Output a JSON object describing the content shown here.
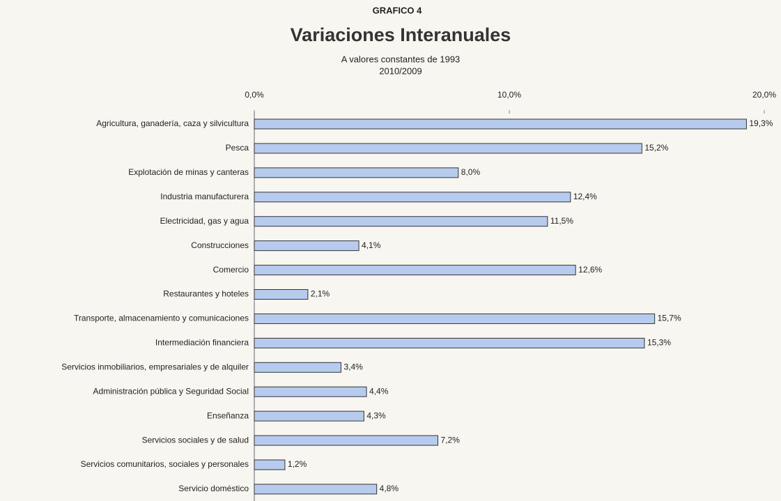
{
  "chart_data": {
    "type": "hbar",
    "heading": "GRAFICO 4",
    "title": "Variaciones Interanuales",
    "subtitle": [
      "A valores constantes de 1993",
      "2010/2009"
    ],
    "categories": [
      "Agricultura, ganadería, caza y silvicultura",
      "Pesca",
      "Explotación de minas y canteras",
      "Industria manufacturera",
      "Electricidad, gas y agua",
      "Construcciones",
      "Comercio",
      "Restaurantes y hoteles",
      "Transporte, almacenamiento y comunicaciones",
      "Intermediación financiera",
      "Servicios inmobiliarios, empresariales y de alquiler",
      "Administración pública y Seguridad Social",
      "Enseñanza",
      "Servicios sociales y de salud",
      "Servicios comunitarios, sociales y personales",
      "Servicio doméstico"
    ],
    "values": [
      19.3,
      15.2,
      8.0,
      12.4,
      11.5,
      4.1,
      12.6,
      2.1,
      15.7,
      15.3,
      3.4,
      4.4,
      4.3,
      7.2,
      1.2,
      4.8
    ],
    "value_labels": [
      "19,3%",
      "15,2%",
      "8,0%",
      "12,4%",
      "11,5%",
      "4,1%",
      "12,6%",
      "2,1%",
      "15,7%",
      "15,3%",
      "3,4%",
      "4,4%",
      "4,3%",
      "7,2%",
      "1,2%",
      "4,8%"
    ],
    "color": "#b7cbef",
    "xlim": [
      0,
      20
    ],
    "xticks": [
      {
        "value": 0,
        "label": "0,0%"
      },
      {
        "value": 10,
        "label": "10,0%"
      },
      {
        "value": 20,
        "label": "20,0%"
      }
    ]
  }
}
